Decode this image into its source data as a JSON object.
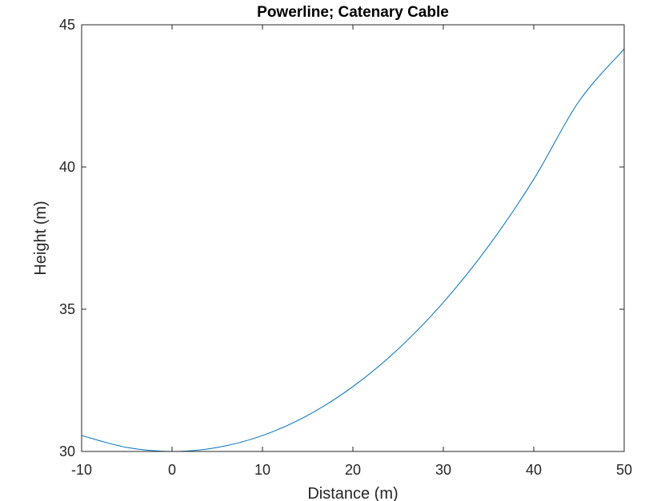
{
  "chart_data": {
    "type": "line",
    "title": "Powerline; Catenary Cable",
    "xlabel": "Distance (m)",
    "ylabel": "Height (m)",
    "xlim": [
      -10,
      50
    ],
    "ylim": [
      30,
      45
    ],
    "xticks": [
      -10,
      0,
      10,
      20,
      30,
      40,
      50
    ],
    "yticks": [
      30,
      35,
      40,
      45
    ],
    "grid": false,
    "box": true,
    "series": [
      {
        "color": "#0072BD",
        "x": [
          -10,
          -5,
          0,
          5,
          10,
          15,
          20,
          25,
          30,
          35,
          40,
          45,
          50
        ],
        "y": [
          30.56,
          30.14,
          30.0,
          30.14,
          30.56,
          31.27,
          32.28,
          33.6,
          35.24,
          37.22,
          39.57,
          42.31,
          44.15
        ]
      }
    ]
  }
}
